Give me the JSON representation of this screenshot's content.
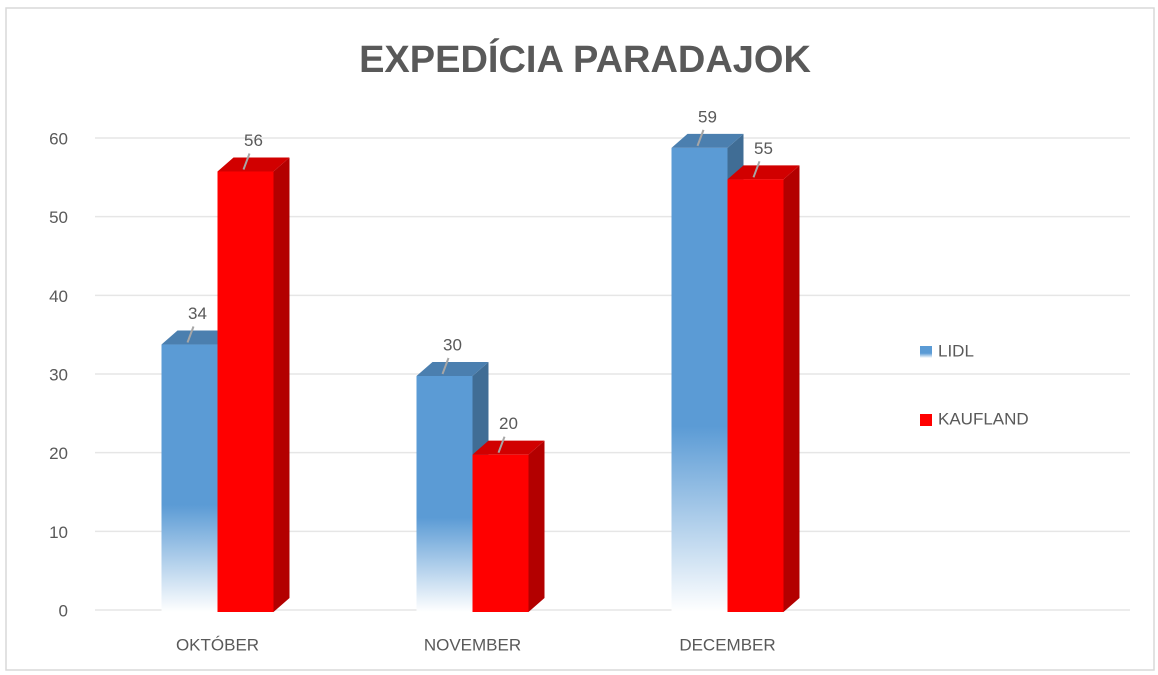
{
  "chart_data": {
    "type": "bar",
    "title": "EXPEDÍCIA PARADAJOK",
    "categories": [
      "OKTÓBER",
      "NOVEMBER",
      "DECEMBER"
    ],
    "series": [
      {
        "name": "LIDL",
        "color": "#5b9bd5",
        "values": [
          34,
          30,
          59
        ]
      },
      {
        "name": "KAUFLAND",
        "color": "#ff0000",
        "values": [
          56,
          20,
          55
        ]
      }
    ],
    "ylim": [
      0,
      60
    ],
    "yticks": [
      0,
      10,
      20,
      30,
      40,
      50,
      60
    ],
    "grid": true,
    "legend": "right"
  }
}
